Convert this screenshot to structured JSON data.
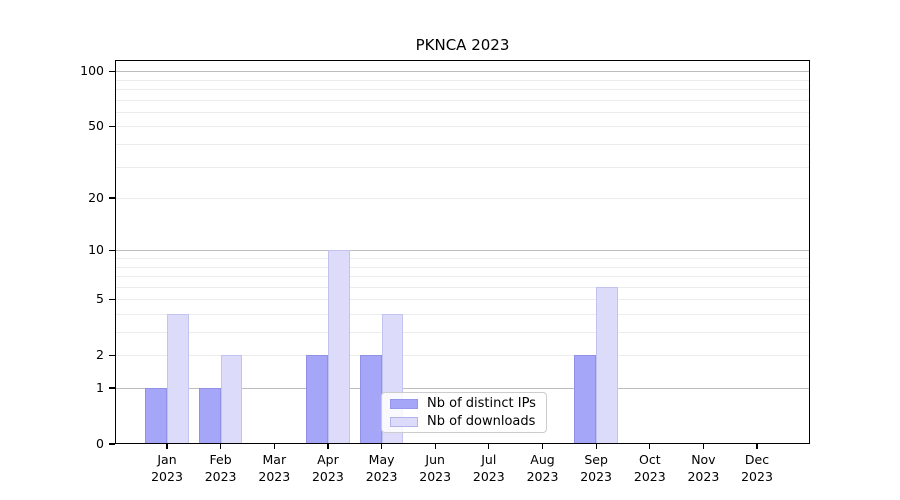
{
  "title": "PKNCA 2023",
  "legend": {
    "items": [
      {
        "label": "Nb of distinct IPs",
        "color": "#a6a6f8"
      },
      {
        "label": "Nb of downloads",
        "color": "#dcdcfa"
      }
    ]
  },
  "chart_data": {
    "type": "bar",
    "title": "PKNCA 2023",
    "xlabel": "",
    "ylabel": "",
    "categories": [
      "Jan 2023",
      "Feb 2023",
      "Mar 2023",
      "Apr 2023",
      "May 2023",
      "Jun 2023",
      "Jul 2023",
      "Aug 2023",
      "Sep 2023",
      "Oct 2023",
      "Nov 2023",
      "Dec 2023"
    ],
    "x_tick_months": [
      "Jan",
      "Feb",
      "Mar",
      "Apr",
      "May",
      "Jun",
      "Jul",
      "Aug",
      "Sep",
      "Oct",
      "Nov",
      "Dec"
    ],
    "x_tick_year": "2023",
    "series": [
      {
        "name": "Nb of distinct IPs",
        "color": "#a6a6f8",
        "edge": "rgba(125,125,215,0.55)",
        "values": [
          1,
          1,
          0,
          2,
          2,
          0,
          0,
          0,
          2,
          0,
          0,
          0
        ]
      },
      {
        "name": "Nb of downloads",
        "color": "#dcdcfa",
        "edge": "rgba(175,175,235,0.55)",
        "values": [
          4,
          2,
          0,
          10,
          4,
          0,
          0,
          0,
          6,
          0,
          0,
          0
        ]
      }
    ],
    "yscale": "log1p",
    "ylim": [
      0,
      115
    ],
    "y_tick_values": [
      0,
      1,
      2,
      5,
      10,
      20,
      50,
      100
    ],
    "grid_minor_values": [
      2,
      3,
      4,
      5,
      6,
      7,
      8,
      9,
      20,
      30,
      40,
      50,
      60,
      70,
      80,
      90
    ],
    "grid_major_values": [
      1,
      10,
      100
    ],
    "grid": true,
    "legend_position": "lower center (inside plot)"
  }
}
